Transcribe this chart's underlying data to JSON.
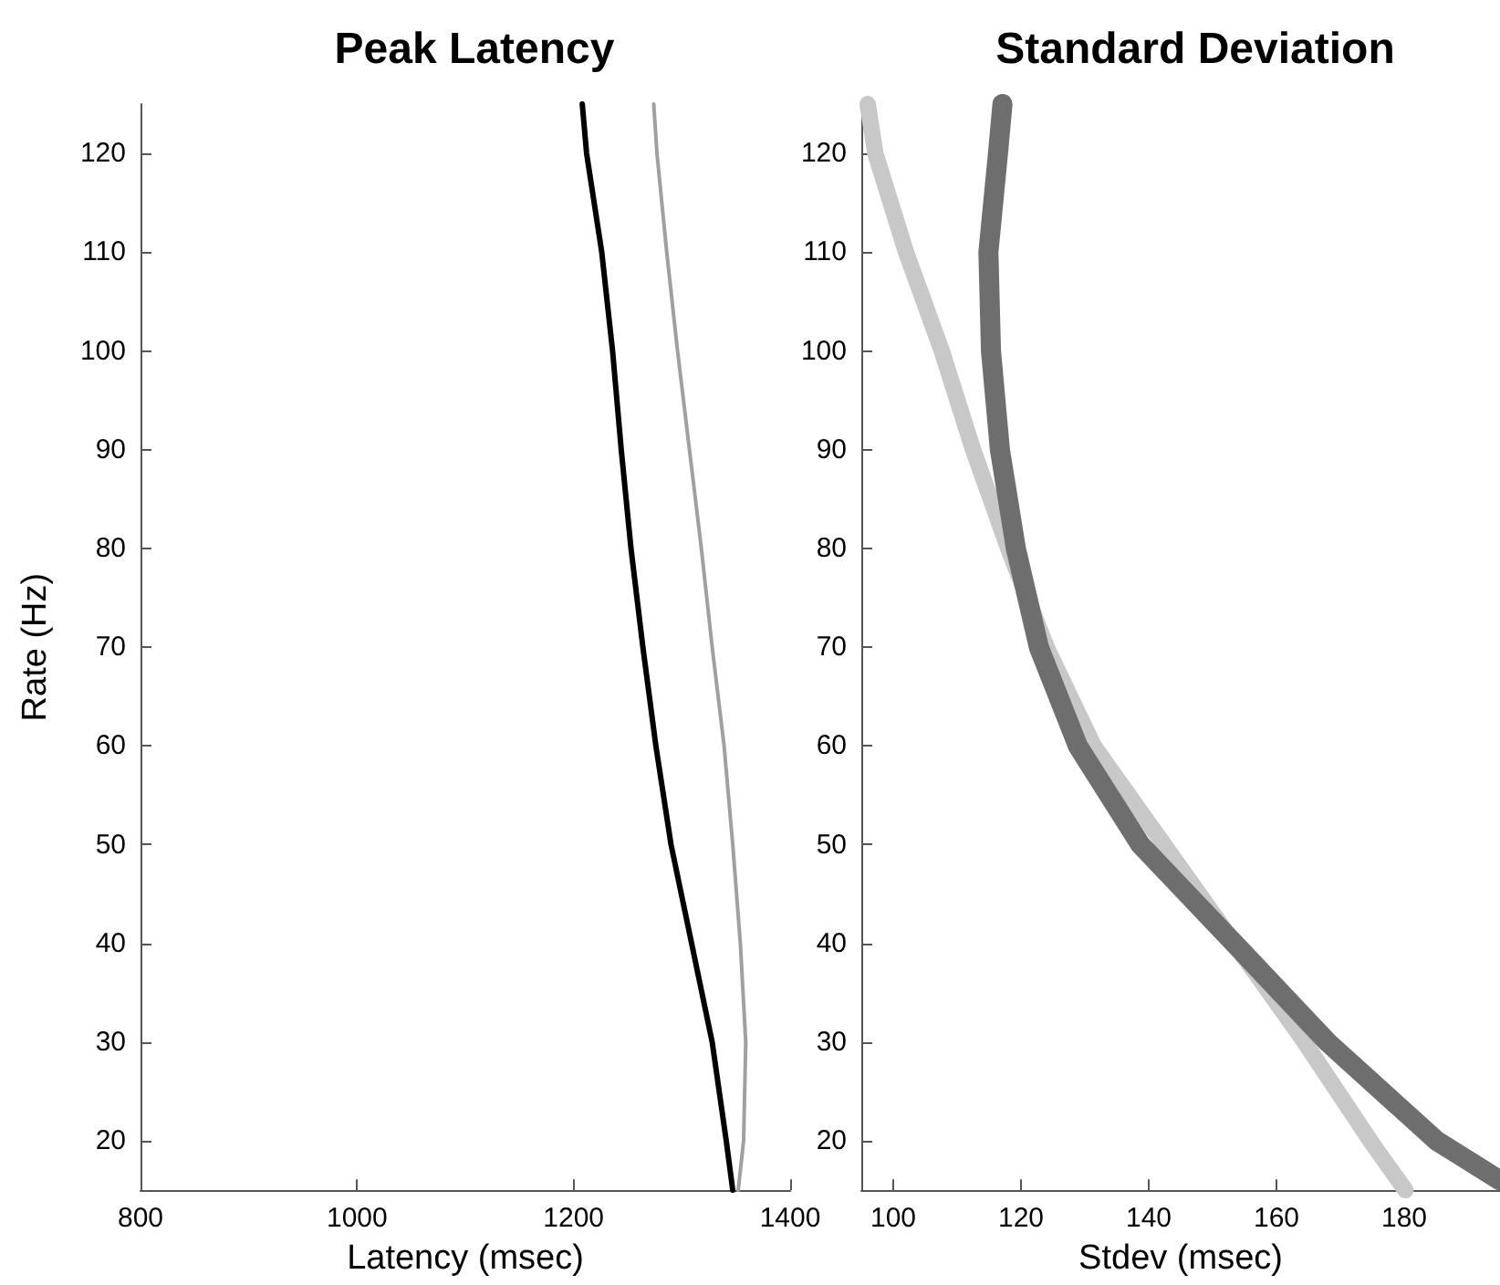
{
  "chart_data": [
    {
      "type": "line",
      "title": "Peak Latency",
      "xlabel": "Latency (msec)",
      "ylabel": "Rate (Hz)",
      "xlim": [
        800,
        1400
      ],
      "xticks": [
        800,
        1000,
        1200,
        1400
      ],
      "ylim": [
        15,
        125
      ],
      "yticks": [
        20,
        30,
        40,
        50,
        60,
        70,
        80,
        90,
        100,
        110,
        120
      ],
      "grid": false,
      "marker": "none",
      "line_style": "solid",
      "series": [
        {
          "color": "#000000",
          "x": [
            1208,
            1212,
            1226,
            1236,
            1244,
            1253,
            1264,
            1276,
            1290,
            1309,
            1328,
            1341,
            1347
          ],
          "values": [
            125,
            120,
            110,
            100,
            90,
            80,
            70,
            60,
            50,
            40,
            30,
            20,
            15
          ]
        },
        {
          "color": "#a0a0a0",
          "x": [
            1274,
            1277,
            1286,
            1296,
            1307,
            1318,
            1328,
            1339,
            1347,
            1354,
            1359,
            1357,
            1352
          ],
          "values": [
            125,
            120,
            110,
            100,
            90,
            80,
            70,
            60,
            50,
            40,
            30,
            20,
            15
          ]
        }
      ]
    },
    {
      "type": "line",
      "title": "Standard Deviation",
      "xlabel": "Stdev (msec)",
      "xlim": [
        95,
        195
      ],
      "xticks": [
        100,
        120,
        140,
        160,
        180
      ],
      "ylim": [
        15,
        125
      ],
      "yticks": [
        20,
        30,
        40,
        50,
        60,
        70,
        80,
        90,
        100,
        110,
        120
      ],
      "grid": false,
      "marker": "none",
      "line_style": "solid",
      "series": [
        {
          "color": "#c8c8c8",
          "x": [
            96,
            97.2,
            102,
            107.6,
            112.5,
            118,
            124,
            131.4,
            142.4,
            153.4,
            164.4,
            174.7,
            180.2
          ],
          "values": [
            125,
            120,
            110,
            100,
            90,
            80,
            70,
            60,
            50,
            40,
            30,
            20,
            15
          ]
        },
        {
          "color": "#6e6e6e",
          "x": [
            117.1,
            116.4,
            114.9,
            115.3,
            116.7,
            119.2,
            122.8,
            128.9,
            138.7,
            153.4,
            168,
            185.1,
            195
          ],
          "values": [
            125,
            120,
            110,
            100,
            90,
            80,
            70,
            60,
            50,
            40,
            30,
            20,
            16
          ]
        }
      ]
    }
  ]
}
